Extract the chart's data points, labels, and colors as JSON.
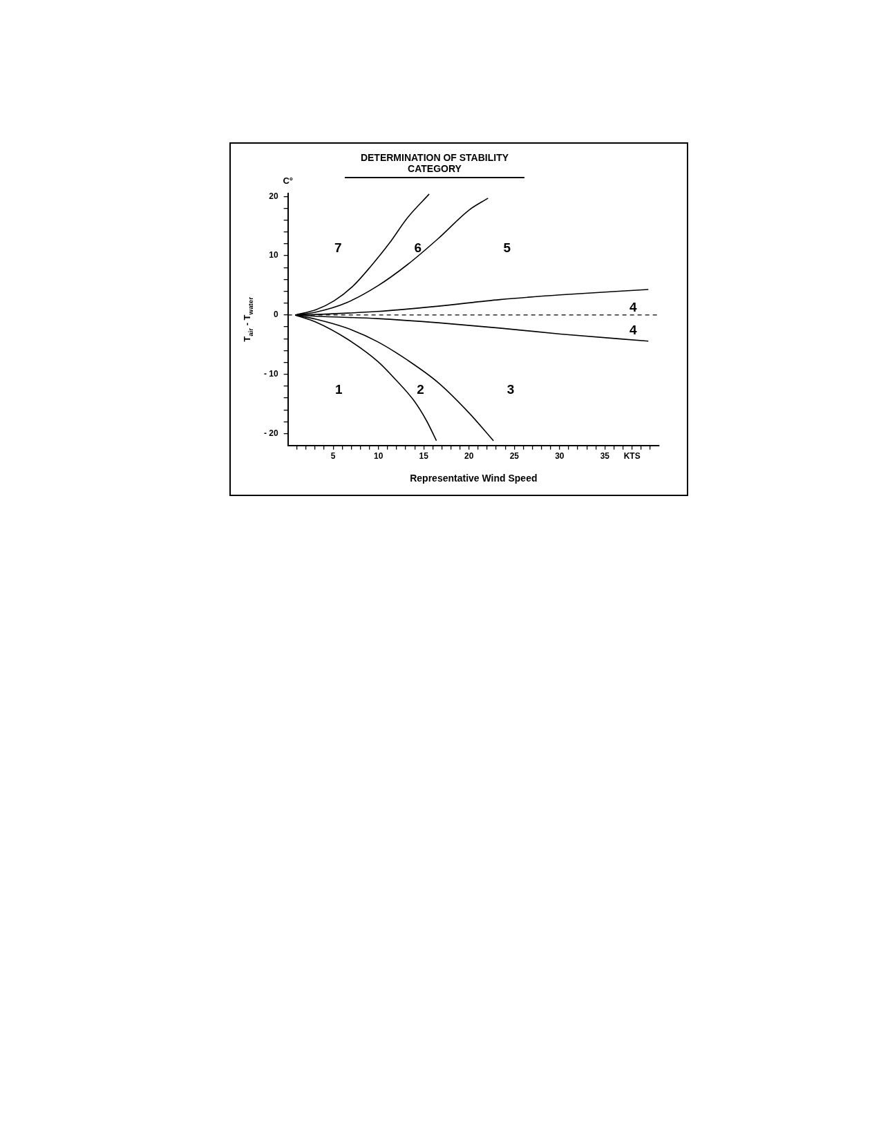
{
  "chart_data": {
    "type": "line",
    "title": "DETERMINATION OF STABILITY CATEGORY",
    "xlabel": "Representative Wind Speed",
    "ylabel": "T$_{air}$ - T$_{water}$",
    "xlim": [
      0,
      41
    ],
    "ylim": [
      -22,
      20.5
    ],
    "xticks": [
      {
        "value": 1,
        "label": null
      },
      {
        "value": 2,
        "label": null
      },
      {
        "value": 3,
        "label": null
      },
      {
        "value": 4,
        "label": null
      },
      5,
      {
        "value": 6,
        "label": null
      },
      {
        "value": 7,
        "label": null
      },
      {
        "value": 8,
        "label": null
      },
      {
        "value": 9,
        "label": null
      },
      10,
      {
        "value": 11,
        "label": null
      },
      {
        "value": 12,
        "label": null
      },
      {
        "value": 13,
        "label": null
      },
      {
        "value": 14,
        "label": null
      },
      15,
      {
        "value": 16,
        "label": null
      },
      {
        "value": 17,
        "label": null
      },
      {
        "value": 18,
        "label": null
      },
      {
        "value": 19,
        "label": null
      },
      20,
      {
        "value": 21,
        "label": null
      },
      {
        "value": 22,
        "label": null
      },
      {
        "value": 23,
        "label": null
      },
      {
        "value": 24,
        "label": null
      },
      25,
      {
        "value": 26,
        "label": null
      },
      {
        "value": 27,
        "label": null
      },
      {
        "value": 28,
        "label": null
      },
      {
        "value": 29,
        "label": null
      },
      30,
      {
        "value": 31,
        "label": null
      },
      {
        "value": 32,
        "label": null
      },
      {
        "value": 33,
        "label": null
      },
      {
        "value": 34,
        "label": null
      },
      35,
      {
        "value": 36,
        "label": null
      },
      {
        "value": 37,
        "label": null
      },
      {
        "value": 38,
        "label": "KTS"
      },
      {
        "value": 39,
        "label": null
      },
      {
        "value": 40,
        "label": null
      }
    ],
    "yticks": [
      -20,
      {
        "value": -18,
        "label": null
      },
      {
        "value": -16,
        "label": null
      },
      {
        "value": -14,
        "label": null
      },
      {
        "value": -12,
        "label": null
      },
      -10,
      {
        "value": -8,
        "label": null
      },
      {
        "value": -6,
        "label": null
      },
      {
        "value": -4,
        "label": null
      },
      {
        "value": -2,
        "label": null
      },
      0,
      {
        "value": 2,
        "label": null
      },
      {
        "value": 4,
        "label": null
      },
      {
        "value": 6,
        "label": null
      },
      {
        "value": 8,
        "label": null
      },
      10,
      {
        "value": 12,
        "label": null
      },
      {
        "value": 14,
        "label": null
      },
      {
        "value": 16,
        "label": null
      },
      {
        "value": 18,
        "label": null
      },
      20
    ],
    "series": [
      {
        "color": "#000000",
        "x": [
          0.8,
          3.1,
          5.1,
          7.2,
          9.2,
          11.2,
          13.2,
          15.6
        ],
        "values": [
          0,
          0.9,
          2.4,
          4.9,
          8.3,
          12.1,
          16.4,
          20.4
        ]
      },
      {
        "color": "#000000",
        "x": [
          0.8,
          3.1,
          6.5,
          9.9,
          13.2,
          16.6,
          20,
          22.1
        ],
        "values": [
          0,
          0.5,
          2.1,
          4.9,
          8.5,
          12.9,
          17.7,
          19.7
        ]
      },
      {
        "color": "#000000",
        "x": [
          0.8,
          3.1,
          9.9,
          16.6,
          23.4,
          30.1,
          39.8
        ],
        "values": [
          0,
          0.1,
          0.6,
          1.5,
          2.6,
          3.4,
          4.3
        ]
      },
      {
        "color": "#000000",
        "x": [
          0.8,
          3.1,
          9.9,
          16.6,
          23.4,
          30.1,
          39.8
        ],
        "values": [
          0,
          -0.2,
          -0.6,
          -1.3,
          -2.2,
          -3.2,
          -4.4
        ]
      },
      {
        "color": "#000000",
        "x": [
          0.8,
          3.1,
          6.5,
          9.9,
          13.2,
          16.6,
          20,
          22.7
        ],
        "values": [
          0,
          -0.7,
          -2.2,
          -4.5,
          -7.6,
          -11.4,
          -16.5,
          -21.2
        ]
      },
      {
        "color": "#000000",
        "x": [
          0.8,
          3.1,
          6.5,
          9.9,
          11.9,
          13.9,
          15.3,
          16.4
        ],
        "values": [
          0,
          -1.2,
          -4,
          -7.8,
          -10.9,
          -14.4,
          -17.8,
          -21.2
        ]
      }
    ],
    "ref_lines": [
      {
        "axis": "y",
        "value": 0,
        "line_style": "dashed",
        "color": "#000000"
      }
    ],
    "annotations": [
      "C°",
      "7",
      "6",
      "5",
      "4",
      "4",
      "1",
      "2",
      "3"
    ]
  }
}
